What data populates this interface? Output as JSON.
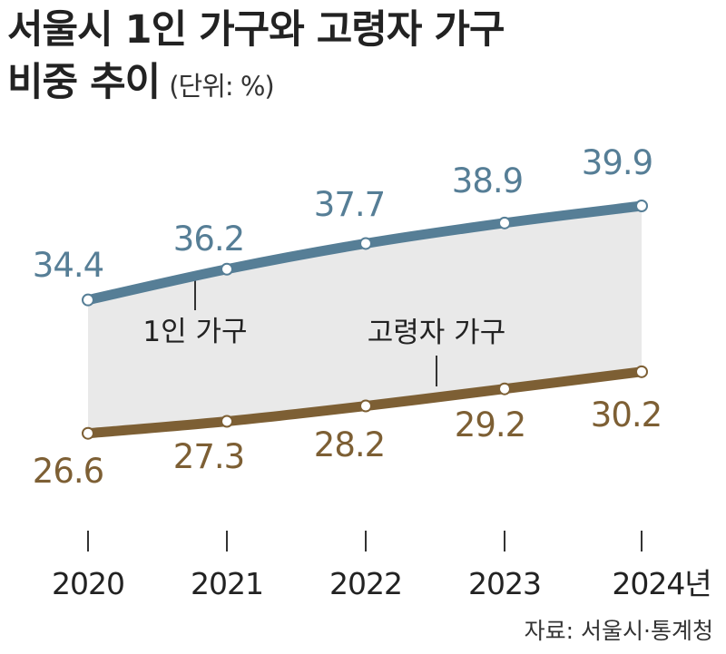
{
  "title_line1": "서울시 1인 가구와 고령자 가구",
  "title_line2": "비중 추이",
  "unit": "(단위: %)",
  "source": "자료: 서울시·통계청",
  "chart_data": {
    "type": "line",
    "x": [
      "2020",
      "2021",
      "2022",
      "2023",
      "2024"
    ],
    "tick_labels": [
      "2020",
      "2021",
      "2022",
      "2023",
      "2024년"
    ],
    "series": [
      {
        "name": "1인 가구",
        "values": [
          34.4,
          36.2,
          37.7,
          38.9,
          39.9
        ],
        "color": "#567e96"
      },
      {
        "name": "고령자 가구",
        "values": [
          26.6,
          27.3,
          28.2,
          29.2,
          30.2
        ],
        "color": "#7d5f34"
      }
    ],
    "value_labels": [
      [
        "34.4",
        "36.2",
        "37.7",
        "38.9",
        "39.9"
      ],
      [
        "26.6",
        "27.3",
        "28.2",
        "29.2",
        "30.2"
      ]
    ],
    "fill_between": "#e9e9e9",
    "grid": false
  }
}
